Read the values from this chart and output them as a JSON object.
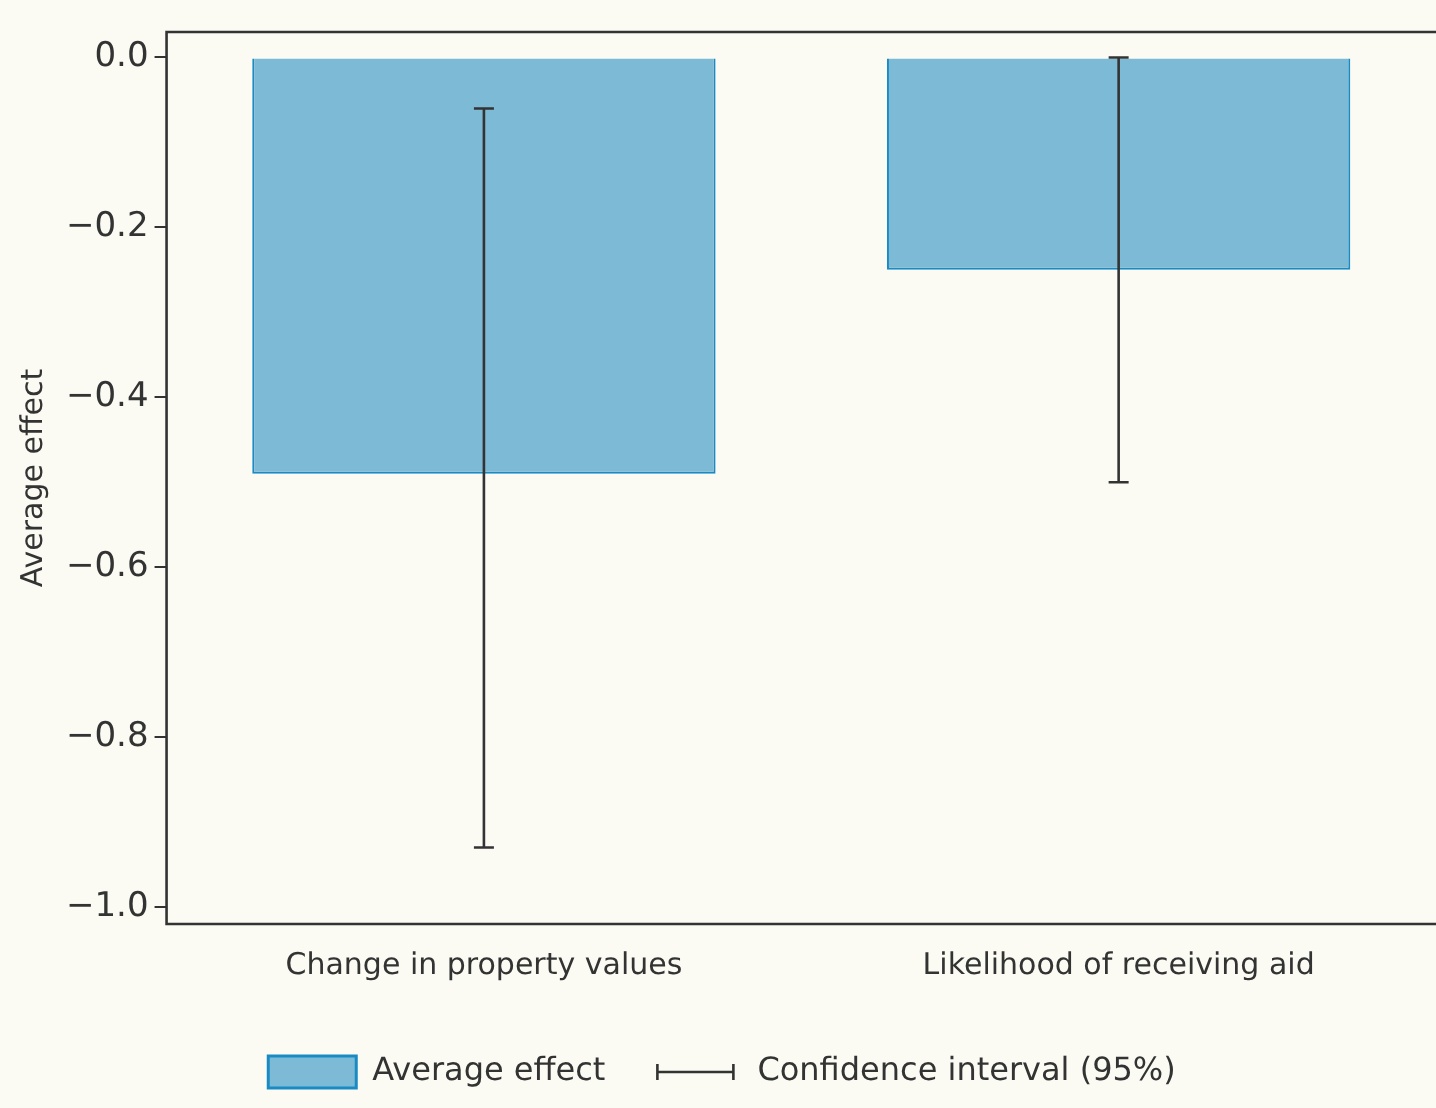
{
  "chart_data": {
    "type": "bar",
    "ylabel": "Average effect",
    "categories": [
      "Change in property values",
      "Likelihood of receiving aid"
    ],
    "series": [
      {
        "name": "Average effect",
        "color": "#7dbad6",
        "values": [
          -0.49,
          -0.25
        ],
        "errors": [
          [
            -0.93,
            -0.06
          ],
          [
            -0.5,
            0.0
          ]
        ]
      }
    ],
    "ylim": [
      -1.02,
      0.03
    ],
    "yticks": [
      {
        "value": 0,
        "label": "0.0"
      },
      {
        "value": -0.2,
        "label": "−0.2"
      },
      {
        "value": -0.4,
        "label": "−0.4"
      },
      {
        "value": -0.6,
        "label": "−0.6"
      },
      {
        "value": -0.8,
        "label": "−0.8"
      },
      {
        "value": -1,
        "label": "−1.0"
      }
    ],
    "grid": false,
    "legend": "bottom",
    "annotations": [
      "Confidence interval (95%)"
    ]
  }
}
